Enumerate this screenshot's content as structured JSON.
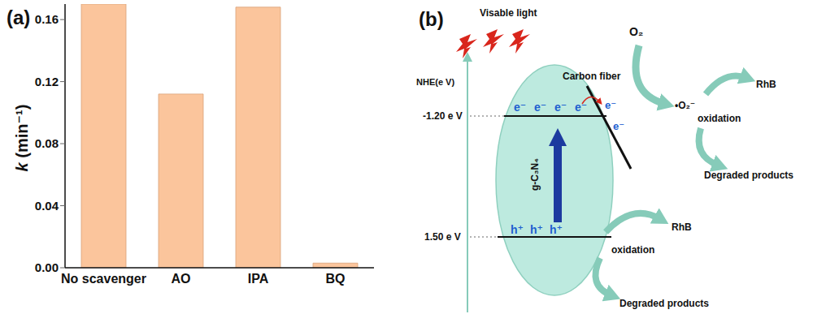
{
  "chart_data": {
    "type": "bar",
    "title": "(a)",
    "y_label": "k (min⁻¹)",
    "categories": [
      "No scavenger",
      "AO",
      "IPA",
      "BQ"
    ],
    "values": [
      0.17,
      0.112,
      0.168,
      0.003
    ],
    "color": "#fbc59c",
    "ylim": [
      0,
      0.17
    ],
    "yticks": [
      {
        "value": 0,
        "label": "0.00"
      },
      0.04,
      0.08,
      0.12,
      0.16
    ],
    "grid": false
  },
  "diagram": {
    "title": "(b)",
    "light": "Visable light",
    "axis_label": "NHE(e V)",
    "cb_level": "-1.20 e V",
    "vb_level": "1.50 e V",
    "semiconductor": "g-C₃N₄",
    "carbon_fiber": "Carbon fiber",
    "oxygen": "O₂",
    "superoxide": "•O₂⁻",
    "cb_electrons": [
      "e⁻",
      "e⁻",
      "e⁻",
      "e⁻"
    ],
    "transfer_electrons": [
      "e⁻",
      "e⁻"
    ],
    "vb_holes": [
      "h⁺",
      "h⁺",
      "h⁺"
    ],
    "upper_path": {
      "pollutant": "RhB",
      "process": "oxidation",
      "product": "Degraded products"
    },
    "lower_path": {
      "pollutant": "RhB",
      "process": "oxidation",
      "product": "Degraded products"
    }
  }
}
